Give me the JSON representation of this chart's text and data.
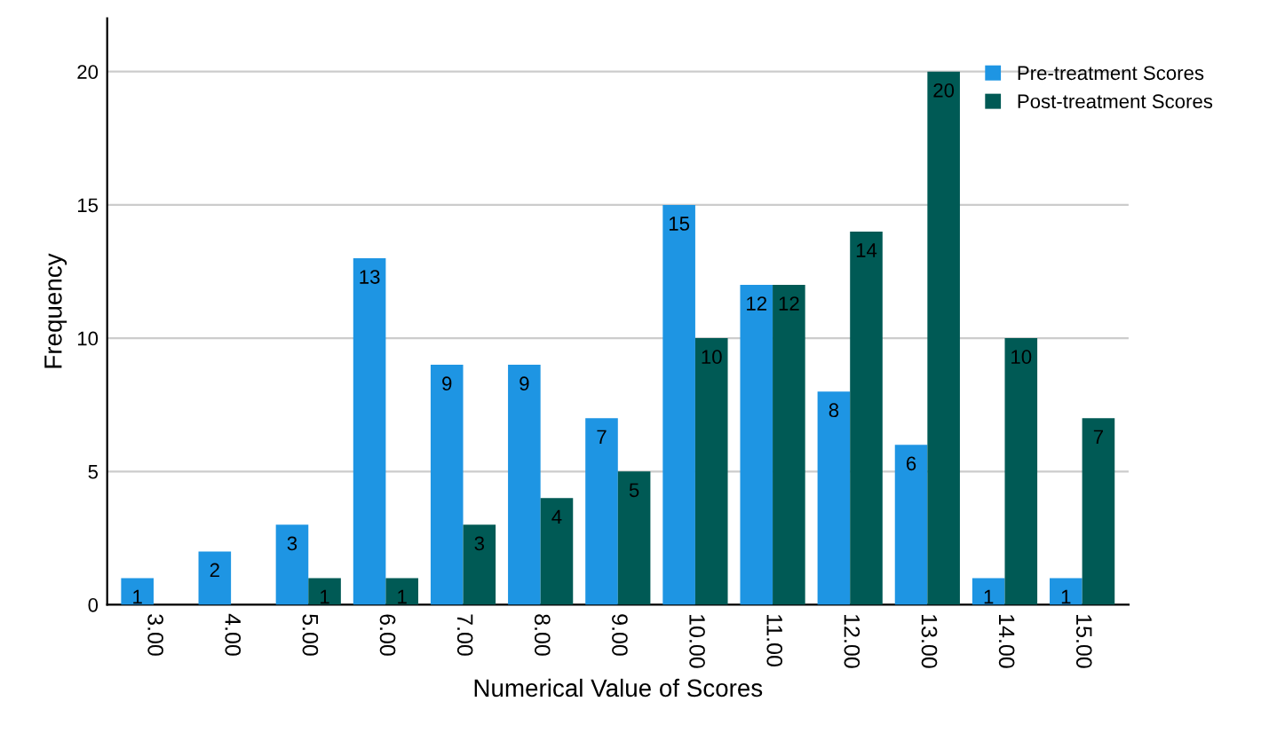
{
  "chart_data": {
    "type": "bar",
    "xlabel": "Numerical Value of Scores",
    "ylabel": "Frequency",
    "categories": [
      "3.00",
      "4.00",
      "5.00",
      "6.00",
      "7.00",
      "8.00",
      "9.00",
      "10.00",
      "11.00",
      "12.00",
      "13.00",
      "14.00",
      "15.00"
    ],
    "series": [
      {
        "name": "Pre-treatment Scores",
        "color": "#1e95e3",
        "values": [
          1,
          2,
          3,
          13,
          9,
          9,
          7,
          15,
          12,
          8,
          6,
          1,
          1
        ]
      },
      {
        "name": "Post-treatment Scores",
        "color": "#005a55",
        "values": [
          null,
          null,
          1,
          1,
          3,
          4,
          5,
          10,
          12,
          14,
          20,
          10,
          7
        ]
      }
    ],
    "ylim": [
      0,
      22
    ],
    "yticks": [
      0,
      5,
      10,
      15,
      20
    ],
    "grid": "y",
    "legend": "top right",
    "data_labels": true
  }
}
